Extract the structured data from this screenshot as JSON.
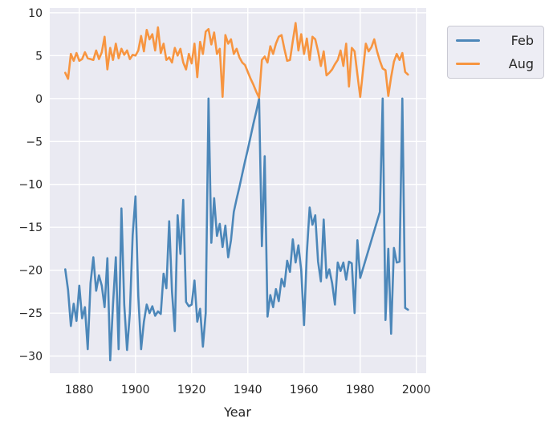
{
  "chart_data": {
    "type": "line",
    "title": "",
    "xlabel": "Year",
    "grid": true,
    "plot_background": "#eaeaf2",
    "grid_color": "#ffffff",
    "xlim": [
      1869.5,
      2003.5
    ],
    "ylim": [
      -32,
      10.55
    ],
    "x_ticks": [
      {
        "value": 1880,
        "label": "1880"
      },
      {
        "value": 1900,
        "label": "1900"
      },
      {
        "value": 1920,
        "label": "1920"
      },
      {
        "value": 1940,
        "label": "1940"
      },
      {
        "value": 1960,
        "label": "1960"
      },
      {
        "value": 1980,
        "label": "1980"
      },
      {
        "value": 2000,
        "label": "2000"
      }
    ],
    "y_ticks": [
      {
        "value": 10,
        "label": "10"
      },
      {
        "value": 5,
        "label": "5"
      },
      {
        "value": 0,
        "label": "0"
      },
      {
        "value": -5,
        "label": "−5"
      },
      {
        "value": -10,
        "label": "−10"
      },
      {
        "value": -15,
        "label": "−15"
      },
      {
        "value": -20,
        "label": "−20"
      },
      {
        "value": -25,
        "label": "−25"
      },
      {
        "value": -30,
        "label": "−30"
      }
    ],
    "legend": {
      "position": "outside-upper-right",
      "entries": [
        {
          "label": "Feb",
          "color": "#4c87b9"
        },
        {
          "label": "Aug",
          "color": "#f79540"
        }
      ]
    },
    "x_start_year": 1875,
    "x_end_year": 1997,
    "series": [
      {
        "name": "Feb",
        "color": "#4c87b9",
        "values": [
          -19.9,
          -22.3,
          -26.5,
          -23.9,
          -25.9,
          -21.8,
          -25.6,
          -24.3,
          -29.2,
          -21.5,
          -18.5,
          -22.4,
          -20.6,
          -21.8,
          -24.3,
          -18.6,
          -30.5,
          -24.0,
          -18.5,
          -29.2,
          -12.8,
          -24.0,
          -29.3,
          -25.0,
          -15.9,
          -11.4,
          -23.0,
          -29.2,
          -26.0,
          -24.0,
          -25.0,
          -24.2,
          -25.3,
          -24.8,
          -25.1,
          -20.4,
          -22.1,
          -14.3,
          -22.5,
          -27.1,
          -13.6,
          -18.1,
          -11.8,
          -23.7,
          -24.2,
          -24.0,
          -21.2,
          -26.0,
          -24.5,
          -28.9,
          -25.0,
          0.0,
          -16.8,
          -11.6,
          -16.0,
          -14.6,
          -17.3,
          -14.8,
          -18.5,
          -16.5,
          -13.2,
          -11.7,
          -10.3,
          -8.8,
          -7.3,
          -5.9,
          -4.4,
          -2.9,
          -1.5,
          0.0,
          -17.2,
          -6.7,
          -25.4,
          -22.9,
          -24.3,
          -22.2,
          -23.6,
          -21.0,
          -21.9,
          -18.9,
          -20.2,
          -16.4,
          -19.1,
          -17.1,
          -20.0,
          -26.4,
          -18.0,
          -12.7,
          -14.7,
          -13.6,
          -19.0,
          -21.3,
          -14.1,
          -20.9,
          -19.9,
          -21.5,
          -24.0,
          -19.1,
          -20.1,
          -19.1,
          -21.1,
          -19.0,
          -19.2,
          -25.0,
          -16.5,
          -20.9,
          -19.8,
          -18.7,
          -17.6,
          -16.5,
          -15.4,
          -14.3,
          -13.2,
          0.0,
          -25.8,
          -17.5,
          -27.4,
          -17.4,
          -19.1,
          -19.0,
          0.0,
          -24.4,
          -24.6
        ]
      },
      {
        "name": "Aug",
        "color": "#f79540",
        "values": [
          3.0,
          2.3,
          5.2,
          4.4,
          5.3,
          4.4,
          4.6,
          5.4,
          4.7,
          4.6,
          4.5,
          5.6,
          4.6,
          5.4,
          7.2,
          3.4,
          5.9,
          4.5,
          6.4,
          4.7,
          5.8,
          5.1,
          5.6,
          4.6,
          5.1,
          5.0,
          5.6,
          7.3,
          5.5,
          8.0,
          6.9,
          7.5,
          5.6,
          8.3,
          5.3,
          6.4,
          4.5,
          4.8,
          4.2,
          5.9,
          5.0,
          5.8,
          4.2,
          3.4,
          5.2,
          4.1,
          6.4,
          2.5,
          6.6,
          5.2,
          7.8,
          8.1,
          6.3,
          7.7,
          5.2,
          5.8,
          0.2,
          7.4,
          6.4,
          6.9,
          5.2,
          5.8,
          4.8,
          4.2,
          3.9,
          3.1,
          2.3,
          1.6,
          0.8,
          0.1,
          4.5,
          4.9,
          4.2,
          6.1,
          5.2,
          6.4,
          7.2,
          7.4,
          5.8,
          4.4,
          4.5,
          6.7,
          8.8,
          5.6,
          7.5,
          5.2,
          7.0,
          4.5,
          7.2,
          6.9,
          5.5,
          3.8,
          5.5,
          2.7,
          3.0,
          3.4,
          4.0,
          4.5,
          5.6,
          3.8,
          6.4,
          1.4,
          5.9,
          5.5,
          2.8,
          0.2,
          3.3,
          6.4,
          5.5,
          6.0,
          6.9,
          5.5,
          4.4,
          3.5,
          3.3,
          0.3,
          2.5,
          4.3,
          5.2,
          4.5,
          5.3,
          3.1,
          2.8
        ]
      }
    ]
  }
}
